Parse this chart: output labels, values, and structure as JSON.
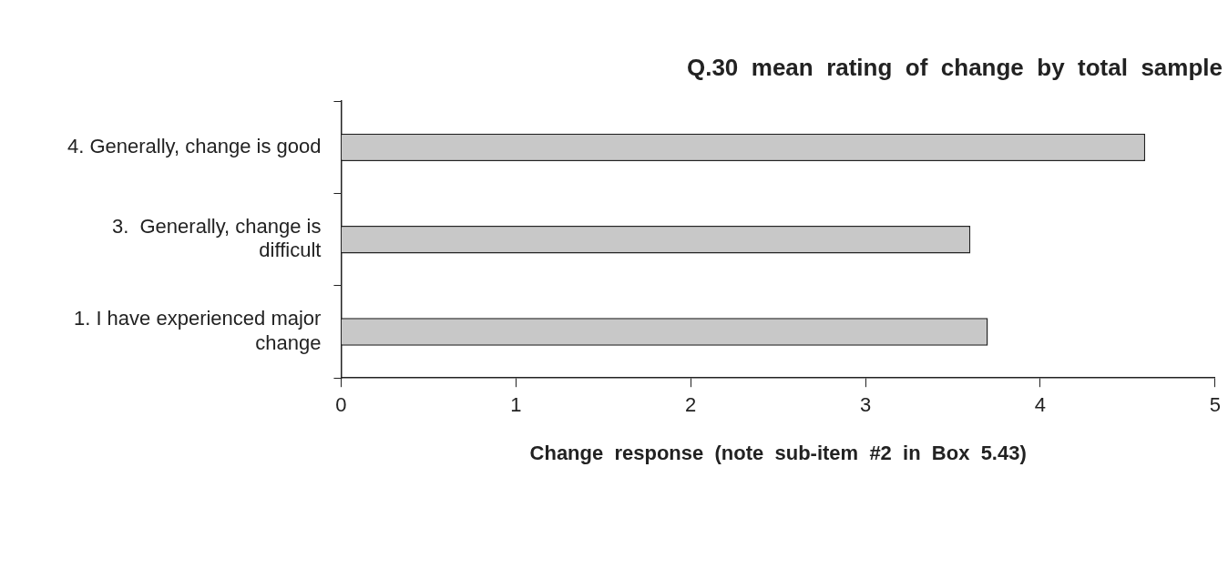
{
  "chart_data": {
    "type": "bar",
    "orientation": "horizontal",
    "title": "Q.30  mean  rating  of  change  by  total  sample",
    "xlabel": "Change  response  (note  sub-item  #2  in  Box  5.43)",
    "categories": [
      "4. Generally, change is good",
      "3.  Generally, change is difficult",
      "1. I have experienced major change"
    ],
    "values": [
      4.6,
      3.6,
      3.7
    ],
    "color": "#c8c8c8",
    "xlim": [
      0,
      5
    ],
    "xticks": [
      0,
      1,
      2,
      3,
      4,
      5
    ],
    "grid": false,
    "legend": false
  }
}
